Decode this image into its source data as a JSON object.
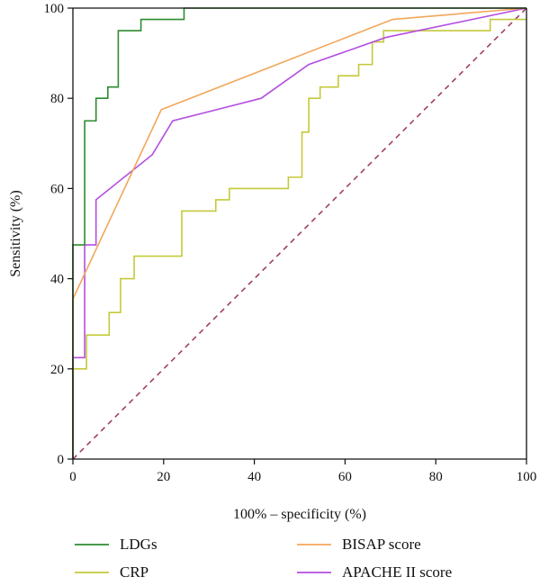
{
  "chart_data": {
    "type": "line",
    "title": "",
    "xlabel": "100% – specificity (%)",
    "ylabel": "Sensitivity (%)",
    "xlim": [
      0,
      100
    ],
    "ylim": [
      0,
      100
    ],
    "xticks": [
      "0",
      "20",
      "40",
      "60",
      "80",
      "100"
    ],
    "yticks": [
      "0",
      "20",
      "40",
      "60",
      "80",
      "100"
    ],
    "grid": false,
    "legend_position": "bottom",
    "reference_line": {
      "style": "dashed",
      "color": "#a0405e",
      "x": [
        0,
        100
      ],
      "y": [
        0,
        100
      ]
    },
    "series": [
      {
        "name": "LDGs",
        "color": "#2e8b2e",
        "step": true,
        "x": [
          0,
          0,
          2.6,
          2.6,
          5.1,
          5.1,
          7.7,
          7.7,
          10.0,
          10.0,
          12.5,
          12.5,
          15.0,
          15.0,
          24.5,
          24.5,
          100
        ],
        "y": [
          0,
          47.5,
          47.5,
          75,
          75,
          80,
          80,
          82.5,
          82.5,
          95,
          95,
          95,
          95,
          97.5,
          97.5,
          100,
          100
        ]
      },
      {
        "name": "CRP",
        "color": "#c4c93a",
        "step": true,
        "x": [
          0,
          0,
          3.0,
          3.0,
          8.0,
          8.0,
          10.5,
          10.5,
          13.5,
          13.5,
          24.0,
          24.0,
          31.5,
          31.5,
          34.5,
          34.5,
          47.5,
          47.5,
          50.5,
          50.5,
          52.0,
          52.0,
          54.5,
          54.5,
          58.5,
          58.5,
          63.0,
          63.0,
          66.0,
          66.0,
          68.5,
          68.5,
          92.0,
          92.0,
          100
        ],
        "y": [
          0,
          20,
          20,
          27.5,
          27.5,
          32.5,
          32.5,
          40,
          40,
          45,
          45,
          55,
          55,
          57.5,
          57.5,
          60,
          60,
          62.5,
          62.5,
          72.5,
          72.5,
          80,
          80,
          82.5,
          82.5,
          85,
          85,
          87.5,
          87.5,
          92.5,
          92.5,
          95,
          95,
          97.5,
          97.5
        ]
      },
      {
        "name": "BISAP score",
        "color": "#f2a65a",
        "step": false,
        "x": [
          0,
          0,
          19.5,
          70.5,
          100
        ],
        "y": [
          0,
          35.5,
          77.5,
          97.5,
          100
        ]
      },
      {
        "name": "APACHE II score",
        "color": "#b44ee0",
        "step": false,
        "x": [
          0,
          0,
          2.6,
          2.6,
          5.1,
          5.1,
          17.5,
          22.0,
          41.5,
          52.0,
          69.0,
          100
        ],
        "y": [
          0,
          22.5,
          22.5,
          47.5,
          47.5,
          57.5,
          67.5,
          75,
          80,
          87.5,
          93.5,
          100
        ]
      }
    ]
  }
}
